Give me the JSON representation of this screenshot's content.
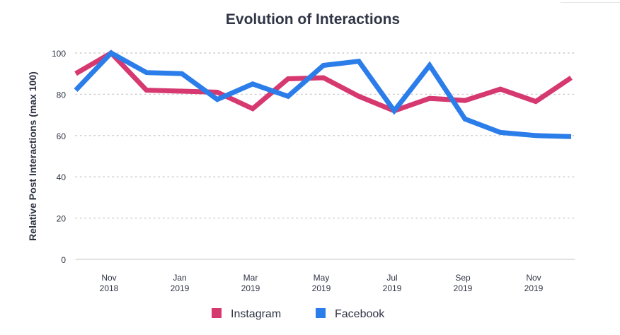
{
  "chart_data": {
    "type": "line",
    "title": "Evolution of Interactions",
    "xlabel": "",
    "ylabel": "Relative Post Interactions (max 100)",
    "ylim": [
      0,
      100
    ],
    "yticks": [
      0,
      20,
      40,
      60,
      80,
      100
    ],
    "grid": true,
    "legend_position": "bottom-center",
    "x": [
      "2018-10",
      "2018-11",
      "2018-12",
      "2019-01",
      "2019-02",
      "2019-03",
      "2019-04",
      "2019-05",
      "2019-06",
      "2019-07",
      "2019-08",
      "2019-09",
      "2019-10",
      "2019-11",
      "2019-12"
    ],
    "xtick_labels": [
      {
        "index": 1,
        "month": "Nov",
        "year": "2018"
      },
      {
        "index": 3,
        "month": "Jan",
        "year": "2019"
      },
      {
        "index": 5,
        "month": "Mar",
        "year": "2019"
      },
      {
        "index": 7,
        "month": "May",
        "year": "2019"
      },
      {
        "index": 9,
        "month": "Jul",
        "year": "2019"
      },
      {
        "index": 11,
        "month": "Sep",
        "year": "2019"
      },
      {
        "index": 13,
        "month": "Nov",
        "year": "2019"
      }
    ],
    "series": [
      {
        "name": "Instagram",
        "color": "#d6396f",
        "values": [
          90,
          100,
          82,
          81.5,
          81,
          73,
          87.5,
          88,
          79,
          72,
          78,
          77,
          82.5,
          76.5,
          88
        ]
      },
      {
        "name": "Facebook",
        "color": "#2b7de9",
        "values": [
          82,
          100,
          90.5,
          90,
          77.5,
          85,
          79,
          94,
          96,
          72,
          94,
          68,
          61.5,
          60,
          59.5
        ]
      }
    ]
  }
}
